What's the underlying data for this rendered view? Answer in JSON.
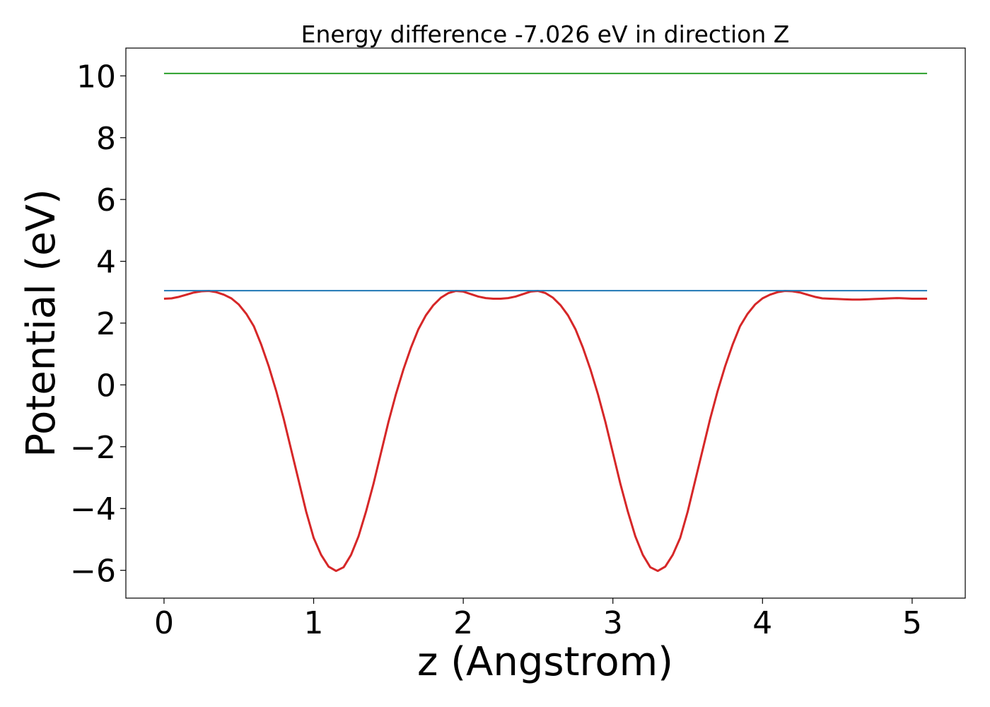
{
  "chart_data": {
    "type": "line",
    "title": "Energy difference -7.026 eV in direction Z",
    "xlabel": "z (Angstrom)",
    "ylabel": "Potential (eV)",
    "xlim": [
      -0.255,
      5.355
    ],
    "ylim": [
      -6.9,
      10.9
    ],
    "xticks": [
      0,
      1,
      2,
      3,
      4,
      5
    ],
    "yticks": [
      -6,
      -4,
      -2,
      0,
      2,
      4,
      6,
      8,
      10
    ],
    "grid": false,
    "series": [
      {
        "color": "#d62728",
        "x": [
          0,
          0.05,
          0.1,
          0.15,
          0.2,
          0.25,
          0.3,
          0.35,
          0.4,
          0.45,
          0.5,
          0.55,
          0.6,
          0.65,
          0.7,
          0.75,
          0.8,
          0.85,
          0.9,
          0.95,
          1.0,
          1.05,
          1.1,
          1.15,
          1.2,
          1.25,
          1.3,
          1.35,
          1.4,
          1.45,
          1.5,
          1.55,
          1.6,
          1.65,
          1.7,
          1.75,
          1.8,
          1.85,
          1.9,
          1.95,
          2.0,
          2.05,
          2.1,
          2.15,
          2.2,
          2.25,
          2.3,
          2.35,
          2.4,
          2.45,
          2.5,
          2.55,
          2.6,
          2.65,
          2.7,
          2.75,
          2.8,
          2.85,
          2.9,
          2.95,
          3.0,
          3.05,
          3.1,
          3.15,
          3.2,
          3.25,
          3.3,
          3.35,
          3.4,
          3.45,
          3.5,
          3.55,
          3.6,
          3.65,
          3.7,
          3.75,
          3.8,
          3.85,
          3.9,
          3.95,
          4.0,
          4.05,
          4.1,
          4.15,
          4.2,
          4.25,
          4.3,
          4.35,
          4.4,
          4.45,
          4.5,
          4.55,
          4.6,
          4.65,
          4.7,
          4.75,
          4.8,
          4.85,
          4.9,
          4.95,
          5.0,
          5.05,
          5.1
        ],
        "values": [
          2.79,
          2.8,
          2.85,
          2.92,
          2.99,
          3.03,
          3.04,
          3.0,
          2.92,
          2.8,
          2.6,
          2.3,
          1.9,
          1.3,
          0.6,
          -0.2,
          -1.1,
          -2.1,
          -3.1,
          -4.1,
          -4.95,
          -5.5,
          -5.88,
          -6.02,
          -5.9,
          -5.5,
          -4.9,
          -4.1,
          -3.2,
          -2.2,
          -1.2,
          -0.3,
          0.5,
          1.2,
          1.8,
          2.25,
          2.58,
          2.82,
          2.97,
          3.04,
          3.02,
          2.94,
          2.86,
          2.81,
          2.79,
          2.79,
          2.81,
          2.86,
          2.94,
          3.02,
          3.04,
          2.97,
          2.82,
          2.58,
          2.25,
          1.8,
          1.2,
          0.5,
          -0.3,
          -1.2,
          -2.2,
          -3.2,
          -4.1,
          -4.9,
          -5.5,
          -5.9,
          -6.02,
          -5.88,
          -5.5,
          -4.95,
          -4.1,
          -3.1,
          -2.1,
          -1.1,
          -0.2,
          0.6,
          1.3,
          1.9,
          2.3,
          2.6,
          2.8,
          2.92,
          3.0,
          3.04,
          3.03,
          2.99,
          2.92,
          2.85,
          2.8,
          2.79,
          2.78,
          2.77,
          2.76,
          2.76,
          2.77,
          2.78,
          2.79,
          2.8,
          2.81,
          2.8,
          2.79,
          2.79,
          2.79
        ]
      },
      {
        "color": "#1f77b4",
        "x": [
          0,
          5.1
        ],
        "values": [
          3.05,
          3.05
        ]
      },
      {
        "color": "#2ca02c",
        "x": [
          0,
          5.1
        ],
        "values": [
          10.08,
          10.08
        ]
      }
    ]
  }
}
